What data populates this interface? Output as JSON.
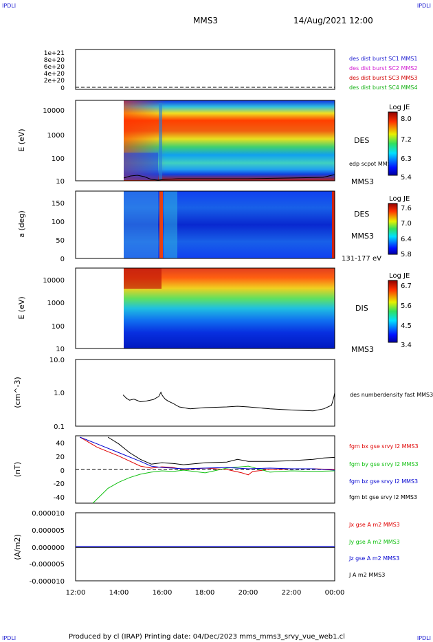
{
  "corners": {
    "top_left": "IPDLI",
    "top_right": "IPDLI",
    "bottom_left": "IPDLI",
    "bottom_right": "IPDLI"
  },
  "header": {
    "spacecraft": "MMS3",
    "datetime": "14/Aug/2021 12:00"
  },
  "footer": "Produced by cl (IRAP)   Printing date: 04/Dec/2023   mms_mms3_srvy_vue_web1.cl",
  "colors": {
    "sc1": "#1a1ad0",
    "sc2": "#d21cd2",
    "sc3": "#d20000",
    "sc4": "#10b010",
    "bx": "#e00000",
    "by": "#10c010",
    "bz": "#0000d0",
    "bt": "#000000"
  },
  "chart_data": [
    {
      "type": "line",
      "panel": "burst",
      "yticks": [
        "1e+21",
        "8e+20",
        "6e+20",
        "4e+20",
        "2e+20",
        "0"
      ],
      "legend": [
        "des dist burst SC1 MMS1",
        "des dist burst SC2 MMS2",
        "des dist burst SC3 MMS3",
        "des dist burst SC4 MMS4"
      ],
      "series": [
        {
          "name": "des dist burst SC1 MMS1",
          "x": [
            12,
            24
          ],
          "y": [
            0,
            0
          ]
        }
      ]
    },
    {
      "type": "heatmap",
      "panel": "des_energy",
      "ylabel": "E (eV)",
      "yticks": [
        "10000",
        "1000",
        "100",
        "10"
      ],
      "ylim": [
        10,
        30000
      ],
      "log_y": true,
      "labels": [
        "DES",
        "edp scpot MMS3",
        "MMS3"
      ],
      "colorbar": {
        "title": "Log JE",
        "ticks": [
          "8.0",
          "7.2",
          "6.3",
          "5.4"
        ],
        "range": [
          5.4,
          8.0
        ]
      },
      "data_start_hour": 14.27
    },
    {
      "type": "heatmap",
      "panel": "des_pitch",
      "ylabel": "a (deg)",
      "yticks": [
        "150",
        "100",
        "50",
        "0"
      ],
      "ylim": [
        0,
        180
      ],
      "labels": [
        "DES",
        "MMS3",
        "131-177 eV"
      ],
      "colorbar": {
        "title": "Log JE",
        "ticks": [
          "7.6",
          "7.0",
          "6.4",
          "5.8"
        ],
        "range": [
          5.8,
          7.6
        ]
      },
      "data_start_hour": 14.27
    },
    {
      "type": "heatmap",
      "panel": "dis_energy",
      "ylabel": "E (eV)",
      "yticks": [
        "10000",
        "1000",
        "100",
        "10"
      ],
      "ylim": [
        10,
        30000
      ],
      "log_y": true,
      "labels": [
        "DIS",
        "MMS3"
      ],
      "colorbar": {
        "title": "Log JE",
        "ticks": [
          "6.7",
          "5.6",
          "4.5",
          "3.4"
        ],
        "range": [
          3.4,
          6.7
        ]
      },
      "data_start_hour": 14.27
    },
    {
      "type": "line",
      "panel": "density",
      "ylabel": "(cm^-3)",
      "yticks": [
        "10.0",
        "1.0",
        "0.1"
      ],
      "ylim": [
        0.1,
        10
      ],
      "log_y": true,
      "series": [
        {
          "name": "des numberdensity fast MMS3",
          "x": [
            14.2,
            14.35,
            14.5,
            14.7,
            15.0,
            15.3,
            15.6,
            15.85,
            15.95,
            16.0,
            16.05,
            16.15,
            16.3,
            16.5,
            16.8,
            17.3,
            18.0,
            19.0,
            19.5,
            20.0,
            21.0,
            22.0,
            23.0,
            23.5,
            23.85,
            23.95,
            24.0
          ],
          "y": [
            0.95,
            0.75,
            0.65,
            0.7,
            0.58,
            0.62,
            0.68,
            0.85,
            1.15,
            0.95,
            0.85,
            0.7,
            0.6,
            0.52,
            0.4,
            0.35,
            0.38,
            0.4,
            0.42,
            0.4,
            0.35,
            0.32,
            0.3,
            0.35,
            0.45,
            0.75,
            1.1
          ]
        }
      ]
    },
    {
      "type": "line",
      "panel": "fgm",
      "ylabel": "(nT)",
      "yticks": [
        "40",
        "20",
        "0",
        "-20",
        "-40"
      ],
      "ylim": [
        -50,
        50
      ],
      "series": [
        {
          "name": "fgm bx gse srvy l2 MMS3",
          "x": [
            12.2,
            13,
            14,
            15,
            15.5,
            16,
            16.5,
            17,
            18,
            19,
            19.7,
            20,
            20.2,
            21,
            22,
            23,
            24
          ],
          "y": [
            48,
            33,
            20,
            5,
            2,
            4,
            3,
            0,
            2,
            0,
            -5,
            -8,
            -3,
            0,
            1,
            1,
            0
          ]
        },
        {
          "name": "fgm by gse srvy l2 MMS3",
          "x": [
            12.8,
            13.5,
            14,
            14.5,
            15,
            15.5,
            16,
            16.5,
            17,
            18,
            19,
            20,
            21,
            22,
            23,
            24
          ],
          "y": [
            -50,
            -28,
            -19,
            -12,
            -7,
            -4,
            -2,
            -3,
            -1,
            -5,
            2,
            5,
            -4,
            -2,
            -3,
            -2
          ]
        },
        {
          "name": "fgm bz gse srvy l2 MMS3",
          "x": [
            12.2,
            13,
            14,
            15,
            15.5,
            16,
            17,
            18,
            19,
            20,
            21,
            22,
            23,
            24
          ],
          "y": [
            48,
            38,
            25,
            12,
            5,
            3,
            1,
            2,
            3,
            1,
            2,
            1,
            1,
            -1
          ]
        },
        {
          "name": "fgm bt gse srvy l2 MMS3",
          "x": [
            13.5,
            14,
            14.5,
            15,
            15.5,
            16,
            16.5,
            17,
            18,
            19,
            19.5,
            20,
            21,
            22,
            23,
            23.5,
            24
          ],
          "y": [
            48,
            38,
            25,
            15,
            8,
            10,
            9,
            7,
            10,
            11,
            15,
            12,
            12,
            13,
            15,
            17,
            18
          ]
        }
      ]
    },
    {
      "type": "line",
      "panel": "current",
      "ylabel": "(A/m2)",
      "yticks": [
        "0.000010",
        "0.000005",
        "0.000000",
        "-0.000005",
        "-0.000010"
      ],
      "ylim": [
        -1e-05,
        1e-05
      ],
      "series": [
        {
          "name": "Jx gse A m2 MMS3",
          "x": [
            12,
            24
          ],
          "y": [
            0,
            0
          ]
        },
        {
          "name": "Jy gse A m2 MMS3",
          "x": [
            12,
            24
          ],
          "y": [
            0,
            0
          ]
        },
        {
          "name": "Jz gse A m2 MMS3",
          "x": [
            12,
            24
          ],
          "y": [
            0,
            0
          ]
        },
        {
          "name": "J A m2 MMS3",
          "x": [
            12,
            24
          ],
          "y": [
            0,
            0
          ]
        }
      ]
    }
  ],
  "xaxis": {
    "ticks": [
      "12:00",
      "14:00",
      "16:00",
      "18:00",
      "20:00",
      "22:00",
      "00:00"
    ],
    "range_hours": [
      12,
      24
    ]
  }
}
